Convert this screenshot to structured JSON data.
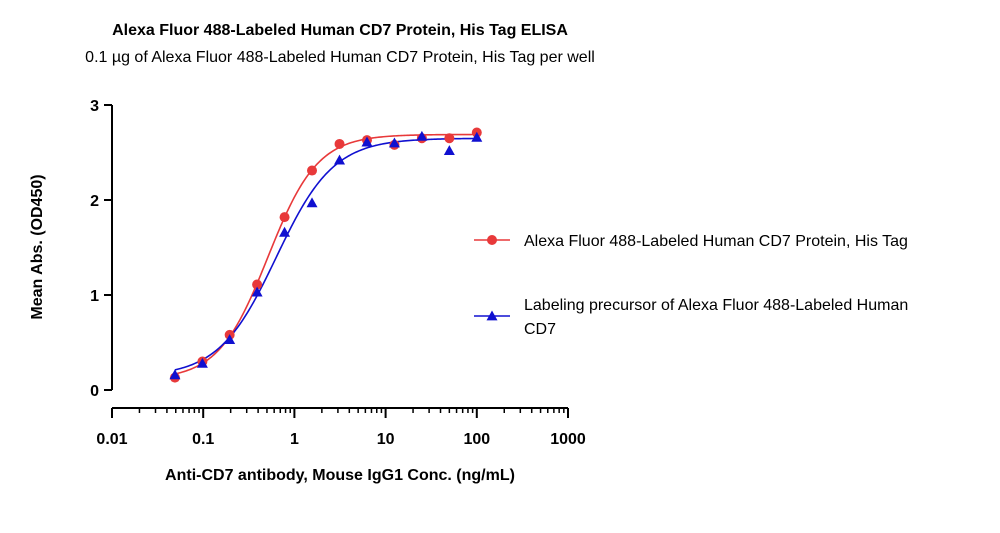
{
  "chart_data": {
    "type": "scatter",
    "title": "Alexa Fluor 488-Labeled Human CD7 Protein, His Tag ELISA",
    "subtitle": "0.1 µg of Alexa Fluor 488-Labeled Human CD7 Protein, His Tag per well",
    "xlabel": "Anti-CD7 antibody, Mouse IgG1 Conc. (ng/mL)",
    "ylabel": "Mean Abs. (OD450)",
    "x_scale": "log",
    "xlim": [
      0.01,
      1000
    ],
    "ylim": [
      0,
      3
    ],
    "x_ticks": [
      "0.01",
      "0.1",
      "1",
      "10",
      "100",
      "1000"
    ],
    "y_ticks": [
      "0",
      "1",
      "2",
      "3"
    ],
    "grid": false,
    "legend_position": "right",
    "series": [
      {
        "name": "Alexa Fluor 488-Labeled Human CD7 Protein, His Tag",
        "color": "#e8393a",
        "marker": "circle",
        "x": [
          0.049,
          0.098,
          0.195,
          0.39,
          0.78,
          1.56,
          3.125,
          6.25,
          12.5,
          25,
          50,
          100
        ],
        "y": [
          0.13,
          0.3,
          0.58,
          1.11,
          1.82,
          2.31,
          2.59,
          2.63,
          2.58,
          2.65,
          2.65,
          2.71
        ]
      },
      {
        "name": "Labeling precursor of Alexa Fluor 488-Labeled Human CD7",
        "color": "#1010d0",
        "marker": "triangle",
        "x": [
          0.049,
          0.098,
          0.195,
          0.39,
          0.78,
          1.56,
          3.125,
          6.25,
          12.5,
          25,
          50,
          100
        ],
        "y": [
          0.16,
          0.28,
          0.53,
          1.03,
          1.66,
          1.97,
          2.42,
          2.61,
          2.6,
          2.67,
          2.52,
          2.66
        ]
      }
    ]
  }
}
